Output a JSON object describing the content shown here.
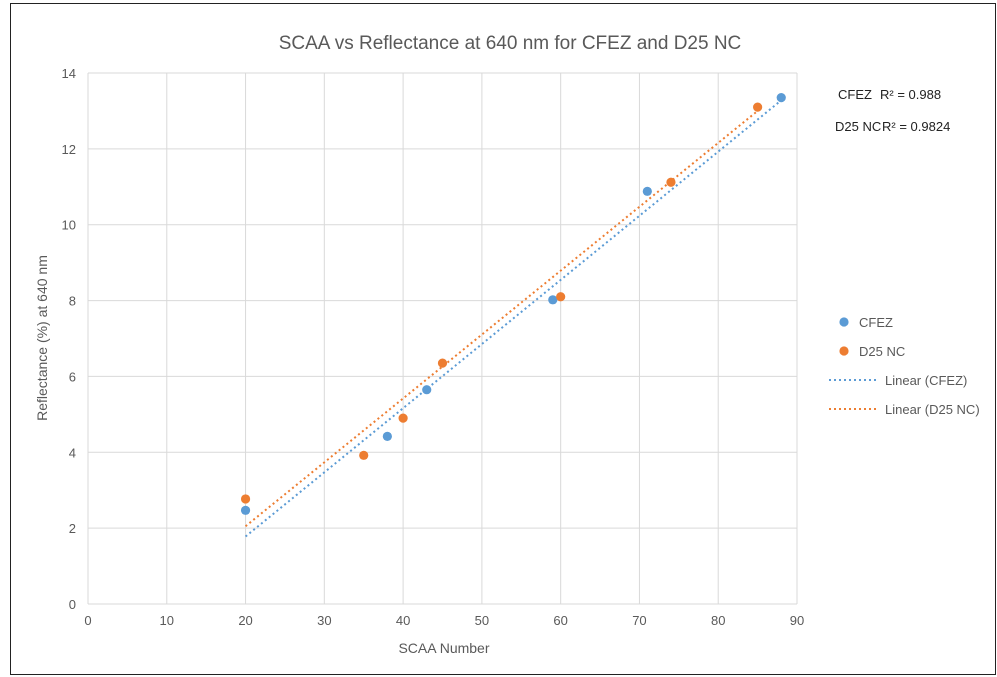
{
  "chart_data": {
    "type": "scatter",
    "title": "SCAA vs Reflectance at 640 nm for CFEZ and D25 NC",
    "xlabel": "SCAA Number",
    "ylabel": "Reflectance (%) at 640 nm",
    "xlim": [
      0,
      90
    ],
    "ylim": [
      0,
      14
    ],
    "xticks": [
      "0",
      "10",
      "20",
      "30",
      "40",
      "50",
      "60",
      "70",
      "80",
      "90"
    ],
    "yticks": [
      "0",
      "2",
      "4",
      "6",
      "8",
      "10",
      "12",
      "14"
    ],
    "grid": true,
    "legend_position": "right",
    "series": [
      {
        "name": "CFEZ",
        "color": "#5b9bd5",
        "points": [
          [
            20,
            2.47
          ],
          [
            38,
            4.42
          ],
          [
            43,
            5.65
          ],
          [
            59,
            8.02
          ],
          [
            71,
            10.88
          ],
          [
            88,
            13.35
          ]
        ]
      },
      {
        "name": "D25 NC",
        "color": "#ed7d31",
        "points": [
          [
            20,
            2.77
          ],
          [
            35,
            3.92
          ],
          [
            40,
            4.9
          ],
          [
            45,
            6.35
          ],
          [
            60,
            8.1
          ],
          [
            74,
            11.12
          ],
          [
            85,
            13.1
          ]
        ]
      }
    ],
    "trendlines": [
      {
        "name": "Linear (CFEZ)",
        "color": "#5b9bd5",
        "from": [
          20,
          1.78
        ],
        "to": [
          88,
          13.28
        ]
      },
      {
        "name": "Linear (D25 NC)",
        "color": "#ed7d31",
        "from": [
          20,
          2.05
        ],
        "to": [
          85,
          13.0
        ]
      }
    ],
    "annotations": [
      {
        "series": "CFEZ",
        "label": "CFEZ",
        "r2": "R² = 0.988"
      },
      {
        "series": "D25 NC",
        "label": "D25 NC",
        "r2": "R² = 0.9824"
      }
    ]
  }
}
